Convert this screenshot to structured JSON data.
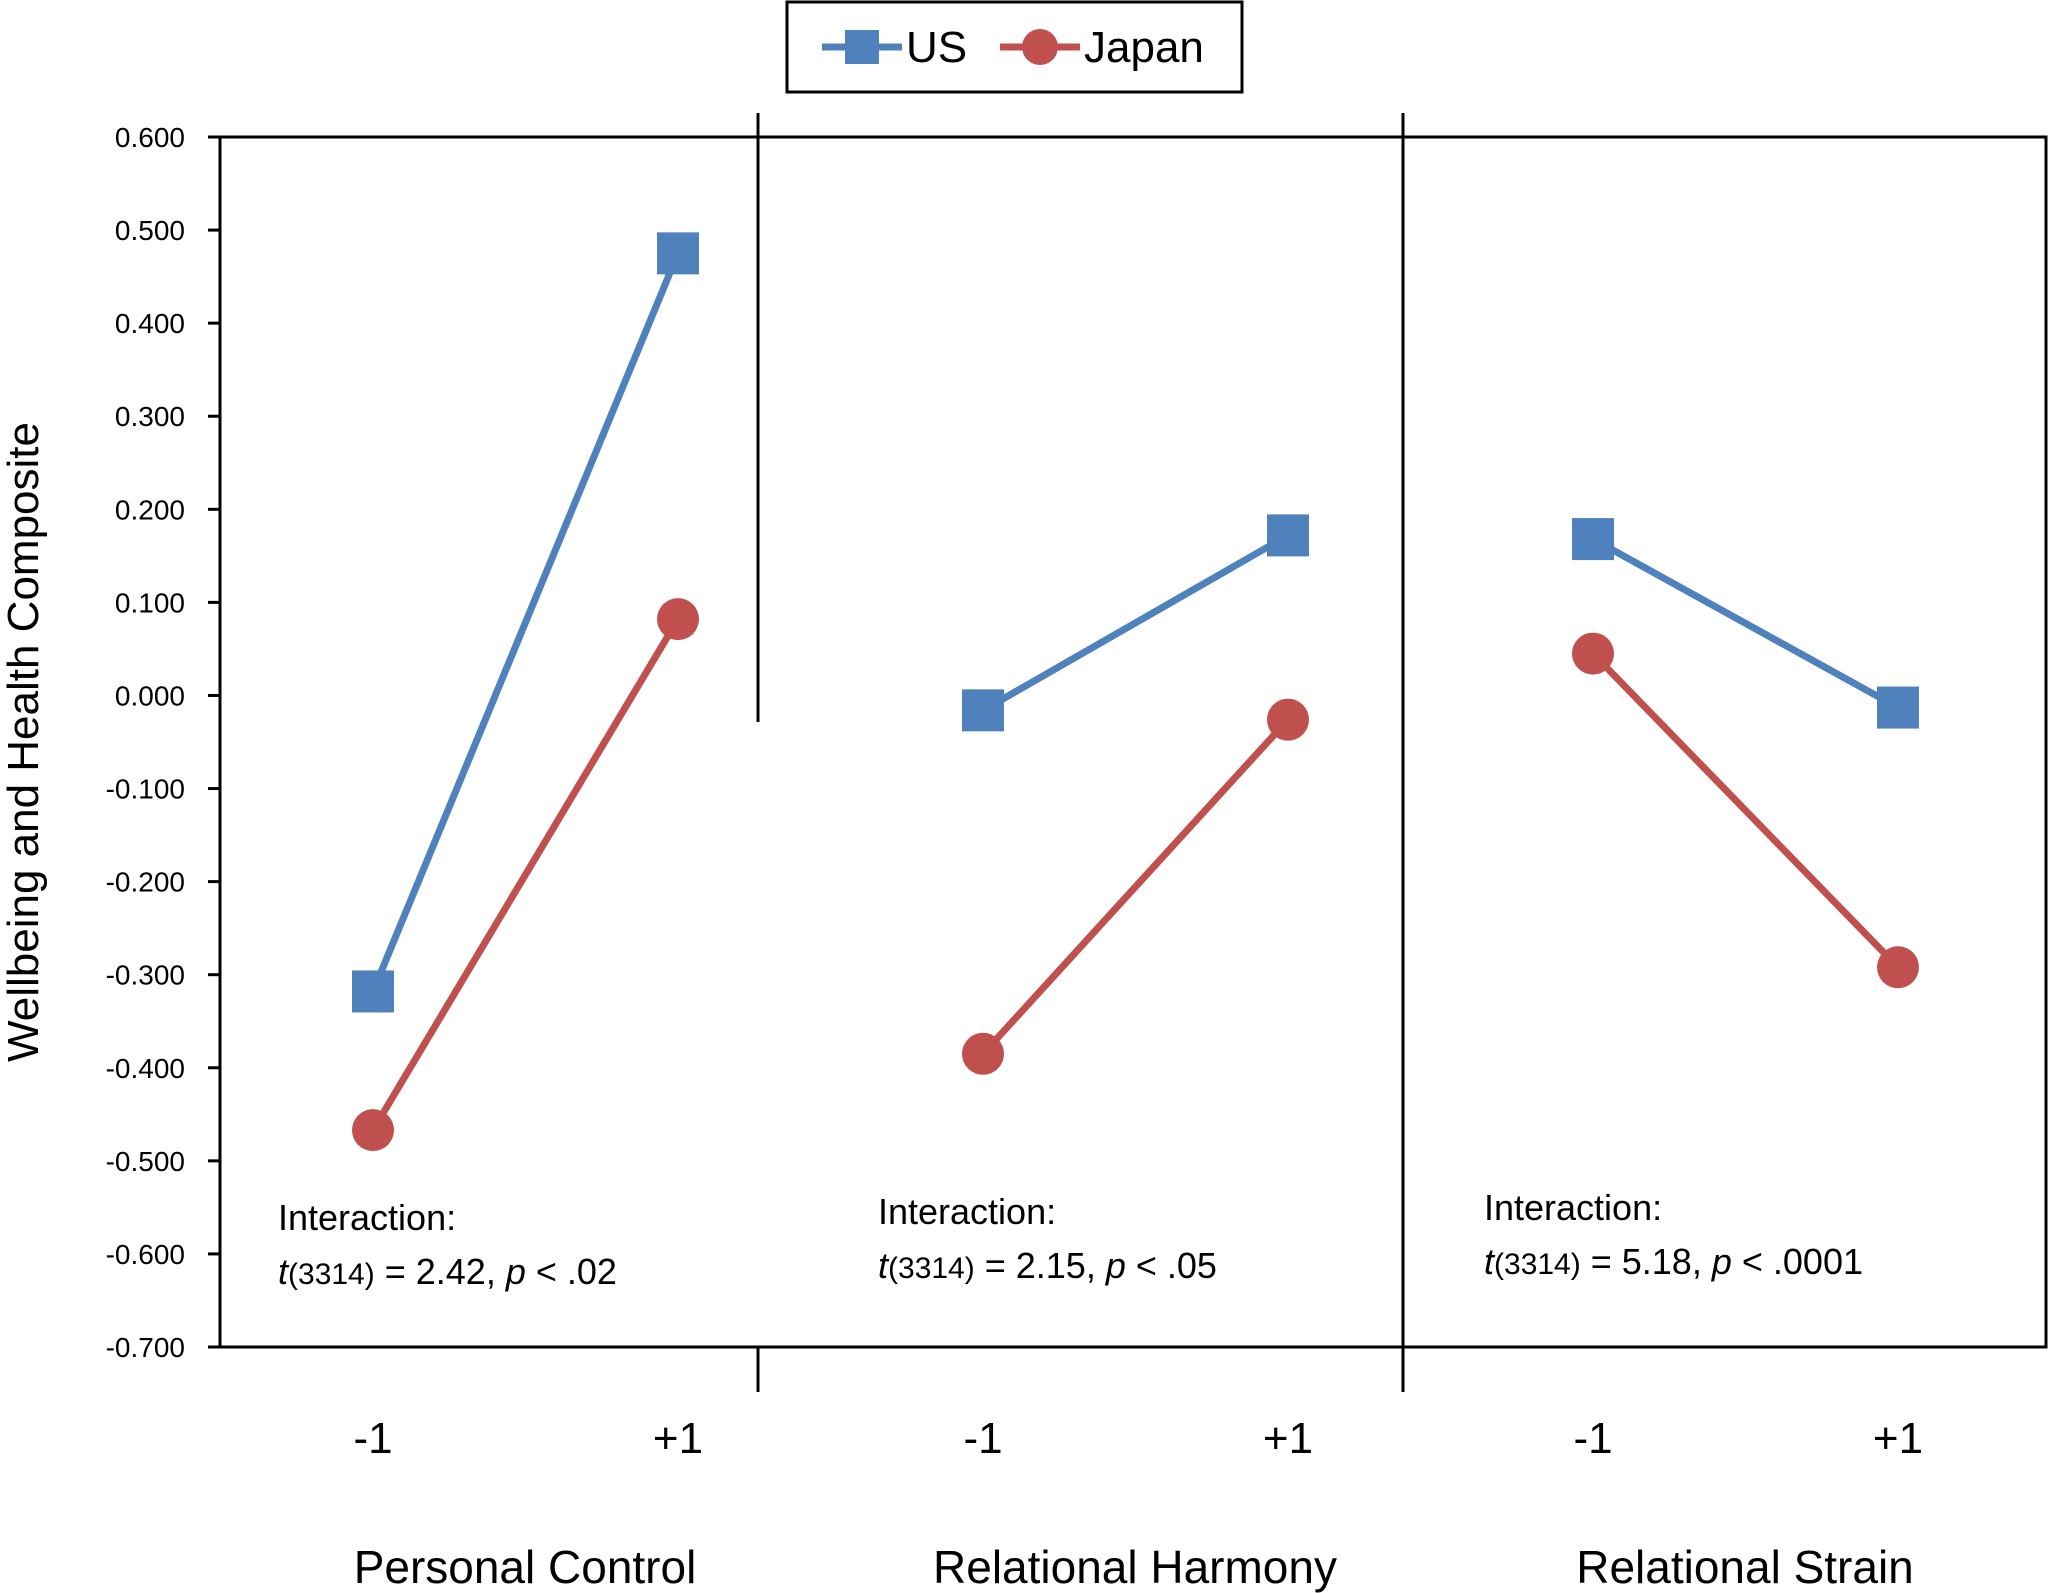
{
  "chart_data": {
    "type": "line",
    "ylabel": "Wellbeing and Health Composite",
    "ylim": [
      -0.7,
      0.6
    ],
    "y_ticks": [
      "0.600",
      "0.500",
      "0.400",
      "0.300",
      "0.200",
      "0.100",
      "0.000",
      "-0.100",
      "-0.200",
      "-0.300",
      "-0.400",
      "-0.500",
      "-0.600",
      "-0.700"
    ],
    "legend": {
      "position": "top-center",
      "entries": [
        "US",
        "Japan"
      ]
    },
    "colors": {
      "US": "#4F81BD",
      "Japan": "#C0504D"
    },
    "categories": [
      "-1",
      "+1"
    ],
    "panels": [
      {
        "group_label": "Personal Control",
        "series": [
          {
            "name": "US",
            "values": [
              -0.318,
              0.475
            ]
          },
          {
            "name": "Japan",
            "values": [
              -0.467,
              0.082
            ]
          }
        ],
        "annotation": {
          "line1": "Interaction:",
          "t_symbol": "t",
          "df": "(3314)",
          "stat": " = 2.42, ",
          "p_symbol": "p",
          "p_text": " < .02"
        }
      },
      {
        "group_label": "Relational Harmony",
        "series": [
          {
            "name": "US",
            "values": [
              -0.016,
              0.172
            ]
          },
          {
            "name": "Japan",
            "values": [
              -0.385,
              -0.026
            ]
          }
        ],
        "annotation": {
          "line1": "Interaction:",
          "t_symbol": "t",
          "df": "(3314)",
          "stat": " = 2.15, ",
          "p_symbol": "p",
          "p_text": " < .05"
        }
      },
      {
        "group_label": "Relational Strain",
        "series": [
          {
            "name": "US",
            "values": [
              0.168,
              -0.013
            ]
          },
          {
            "name": "Japan",
            "values": [
              0.045,
              -0.292
            ]
          }
        ],
        "annotation": {
          "line1": "Interaction:",
          "t_symbol": "t",
          "df": "(3314)",
          "stat": " = 5.18, ",
          "p_symbol": "p",
          "p_text": " < .0001"
        }
      }
    ]
  }
}
